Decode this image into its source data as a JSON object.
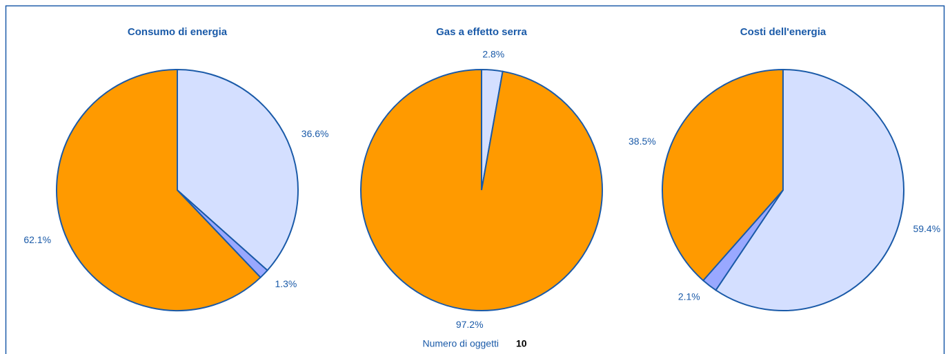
{
  "chart_data": [
    {
      "type": "pie",
      "title": "Consumo di energia",
      "values": [
        36.6,
        1.3,
        62.1
      ],
      "value_labels": [
        "36.6%",
        "1.3%",
        "62.1%"
      ],
      "colors": [
        "#d4dfff",
        "#99a8ff",
        "#ff9a00"
      ]
    },
    {
      "type": "pie",
      "title": "Gas a effetto serra",
      "values": [
        2.8,
        97.2
      ],
      "value_labels": [
        "2.8%",
        "97.2%"
      ],
      "colors": [
        "#d4dfff",
        "#ff9a00"
      ]
    },
    {
      "type": "pie",
      "title": "Costi dell'energia",
      "values": [
        59.4,
        2.1,
        38.5
      ],
      "value_labels": [
        "59.4%",
        "2.1%",
        "38.5%"
      ],
      "colors": [
        "#d4dfff",
        "#99a8ff",
        "#ff9a00"
      ]
    }
  ],
  "footer": {
    "label": "Numero di oggetti",
    "value": 10
  }
}
